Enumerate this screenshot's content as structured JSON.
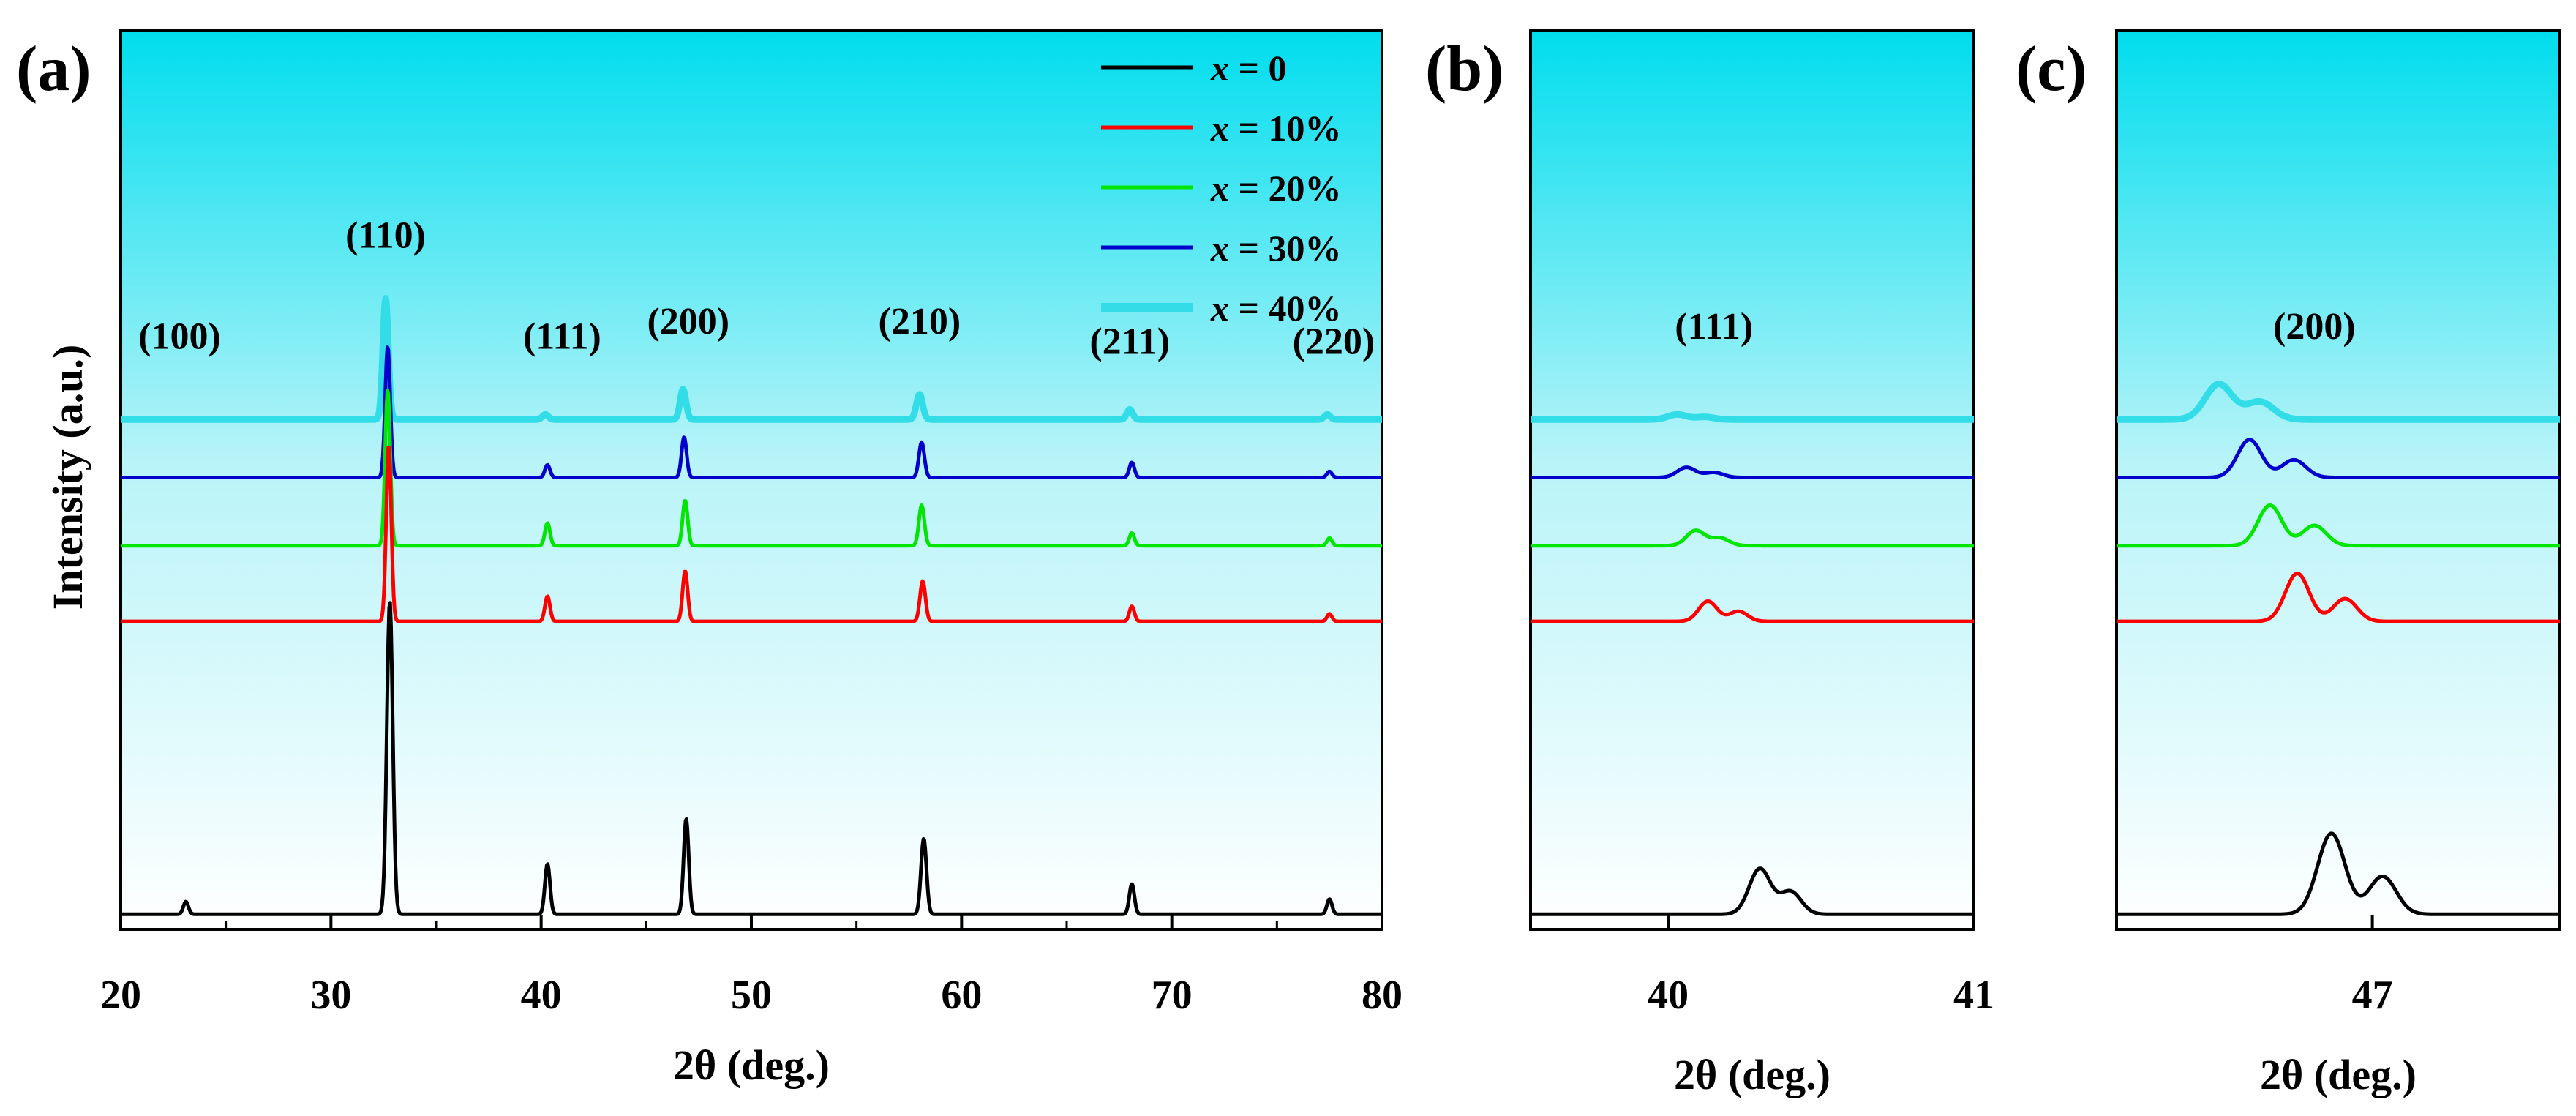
{
  "figure": {
    "panel_a_label": "(a)",
    "panel_b_label": "(b)",
    "panel_c_label": "(c)",
    "y_axis_label": "Intensity (a.u.)"
  },
  "colors": {
    "x0": "#000000",
    "x10": "#ff0000",
    "x20": "#00e600",
    "x30": "#0000cc",
    "x40": "#33dde8",
    "background_top": "#00ddee",
    "background_bottom": "#ffffff"
  },
  "chart_data": [
    {
      "panel": "a",
      "type": "line",
      "title": "",
      "xlabel": "2θ (deg.)",
      "ylabel": "Intensity (a.u.)",
      "xlim": [
        20,
        80
      ],
      "xticks": [
        "20",
        "30",
        "40",
        "50",
        "60",
        "70",
        "80"
      ],
      "xtick_values": [
        20,
        30,
        40,
        50,
        60,
        70,
        80
      ],
      "legend": {
        "placement": "top-right",
        "entries": [
          "x = 0",
          "x = 10%",
          "x = 20%",
          "x = 30%",
          "x = 40%"
        ]
      },
      "series": [
        {
          "name": "x = 0",
          "color_key": "x0",
          "baseline": 0.0,
          "peaks": [
            [
              23.1,
              0.025,
              0.12
            ],
            [
              32.8,
              0.62,
              0.14
            ],
            [
              40.3,
              0.1,
              0.12
            ],
            [
              46.9,
              0.19,
              0.12
            ],
            [
              58.2,
              0.15,
              0.13
            ],
            [
              68.1,
              0.06,
              0.12
            ],
            [
              77.5,
              0.03,
              0.12
            ]
          ]
        },
        {
          "name": "x = 10%",
          "color_key": "x10",
          "baseline": 0.58,
          "peaks": [
            [
              32.75,
              0.35,
              0.12
            ],
            [
              40.3,
              0.05,
              0.12
            ],
            [
              46.85,
              0.1,
              0.12
            ],
            [
              58.15,
              0.08,
              0.13
            ],
            [
              68.1,
              0.03,
              0.12
            ],
            [
              77.5,
              0.015,
              0.12
            ]
          ]
        },
        {
          "name": "x = 20%",
          "color_key": "x20",
          "baseline": 0.73,
          "peaks": [
            [
              32.7,
              0.31,
              0.12
            ],
            [
              40.3,
              0.045,
              0.12
            ],
            [
              46.85,
              0.09,
              0.12
            ],
            [
              58.1,
              0.08,
              0.13
            ],
            [
              68.1,
              0.025,
              0.12
            ],
            [
              77.5,
              0.015,
              0.12
            ]
          ]
        },
        {
          "name": "x = 30%",
          "color_key": "x30",
          "baseline": 0.865,
          "peaks": [
            [
              32.7,
              0.26,
              0.12
            ],
            [
              40.3,
              0.025,
              0.12
            ],
            [
              46.8,
              0.08,
              0.12
            ],
            [
              58.1,
              0.07,
              0.13
            ],
            [
              68.1,
              0.03,
              0.12
            ],
            [
              77.5,
              0.012,
              0.12
            ]
          ]
        },
        {
          "name": "x = 40%",
          "color_key": "x40",
          "baseline": 0.98,
          "peaks": [
            [
              32.6,
              0.24,
              0.13
            ],
            [
              40.2,
              0.01,
              0.14
            ],
            [
              46.75,
              0.06,
              0.14
            ],
            [
              58.0,
              0.05,
              0.15
            ],
            [
              68.0,
              0.02,
              0.14
            ],
            [
              77.4,
              0.01,
              0.14
            ]
          ]
        }
      ],
      "annotations": [
        {
          "text": "(100)",
          "x": 22.8,
          "y": 1.12
        },
        {
          "text": "(110)",
          "x": 32.6,
          "y": 1.32
        },
        {
          "text": "(111)",
          "x": 41.0,
          "y": 1.12
        },
        {
          "text": "(200)",
          "x": 47.0,
          "y": 1.15
        },
        {
          "text": "(210)",
          "x": 58.0,
          "y": 1.15
        },
        {
          "text": "(211)",
          "x": 68.0,
          "y": 1.11
        },
        {
          "text": "(220)",
          "x": 77.7,
          "y": 1.11
        }
      ],
      "ylim": [
        -0.03,
        1.75
      ]
    },
    {
      "panel": "b",
      "type": "line",
      "xlabel": "2θ (deg.)",
      "xlim": [
        39.55,
        41.0
      ],
      "xticks": [
        "40",
        "41"
      ],
      "xtick_values": [
        40,
        41
      ],
      "series": [
        {
          "name": "x = 0",
          "color_key": "x0",
          "baseline": 0.0,
          "peaks": [
            [
              40.3,
              0.09,
              0.035
            ],
            [
              40.4,
              0.045,
              0.035
            ]
          ]
        },
        {
          "name": "x = 10%",
          "color_key": "x10",
          "baseline": 0.58,
          "peaks": [
            [
              40.13,
              0.04,
              0.03
            ],
            [
              40.23,
              0.02,
              0.03
            ]
          ]
        },
        {
          "name": "x = 20%",
          "color_key": "x20",
          "baseline": 0.73,
          "peaks": [
            [
              40.09,
              0.03,
              0.03
            ],
            [
              40.17,
              0.015,
              0.03
            ]
          ]
        },
        {
          "name": "x = 30%",
          "color_key": "x30",
          "baseline": 0.865,
          "peaks": [
            [
              40.06,
              0.02,
              0.03
            ],
            [
              40.15,
              0.01,
              0.03
            ]
          ]
        },
        {
          "name": "x = 40%",
          "color_key": "x40",
          "baseline": 0.98,
          "peaks": [
            [
              40.03,
              0.01,
              0.03
            ],
            [
              40.12,
              0.005,
              0.03
            ]
          ]
        }
      ],
      "annotations": [
        {
          "text": "(111)",
          "x": 40.15,
          "y": 1.14
        }
      ],
      "ylim": [
        -0.03,
        1.75
      ]
    },
    {
      "panel": "c",
      "type": "line",
      "xlabel": "2θ (deg.)",
      "xlim": [
        46.25,
        47.55
      ],
      "xticks": [
        "47"
      ],
      "xtick_values": [
        47
      ],
      "series": [
        {
          "name": "x = 0",
          "color_key": "x0",
          "baseline": 0.0,
          "peaks": [
            [
              46.88,
              0.16,
              0.04
            ],
            [
              47.03,
              0.075,
              0.04
            ]
          ]
        },
        {
          "name": "x = 10%",
          "color_key": "x10",
          "baseline": 0.58,
          "peaks": [
            [
              46.78,
              0.095,
              0.035
            ],
            [
              46.92,
              0.045,
              0.035
            ]
          ]
        },
        {
          "name": "x = 20%",
          "color_key": "x20",
          "baseline": 0.73,
          "peaks": [
            [
              46.7,
              0.08,
              0.035
            ],
            [
              46.83,
              0.04,
              0.035
            ]
          ]
        },
        {
          "name": "x = 30%",
          "color_key": "x30",
          "baseline": 0.865,
          "peaks": [
            [
              46.64,
              0.075,
              0.035
            ],
            [
              46.77,
              0.035,
              0.035
            ]
          ]
        },
        {
          "name": "x = 40%",
          "color_key": "x40",
          "baseline": 0.98,
          "peaks": [
            [
              46.55,
              0.07,
              0.04
            ],
            [
              46.67,
              0.035,
              0.04
            ]
          ]
        }
      ],
      "annotations": [
        {
          "text": "(200)",
          "x": 46.83,
          "y": 1.14
        }
      ],
      "ylim": [
        -0.03,
        1.75
      ]
    }
  ]
}
